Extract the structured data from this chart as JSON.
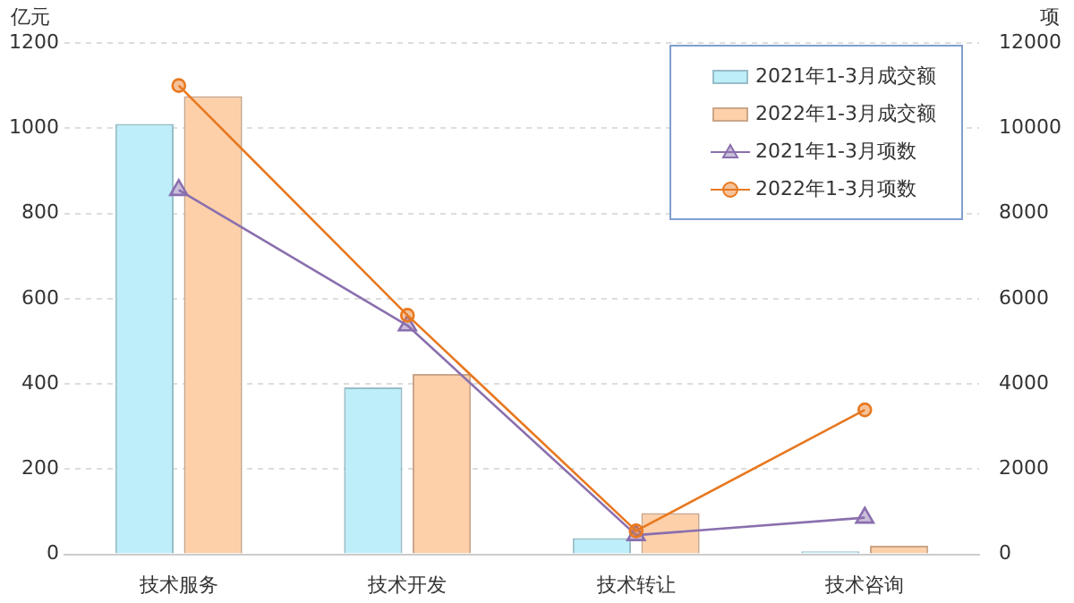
{
  "chart_data": {
    "type": "bar",
    "ylabel": "亿元",
    "y2label": "项",
    "categories": [
      "技术服务",
      "技术开发",
      "技术转让",
      "技术咨询"
    ],
    "series": [
      {
        "name": "2021年1-3月成交额",
        "color": "#bdeefa",
        "values": [
          1010,
          392,
          38,
          7
        ]
      },
      {
        "name": "2022年1-3月成交额",
        "color": "#fdd0aa",
        "values": [
          1075,
          423,
          97,
          20
        ]
      },
      {
        "name": "2021年1-3月项数",
        "type": "line",
        "axis": "y2",
        "marker": "triangle",
        "color": "#8a6fae",
        "values": [
          8550,
          5370,
          450,
          860
        ]
      },
      {
        "name": "2022年1-3月项数",
        "type": "line",
        "axis": "y2",
        "marker": "circle",
        "color": "#e8781f",
        "values": [
          11000,
          5610,
          550,
          3390
        ]
      }
    ],
    "ylim": [
      0,
      1200
    ],
    "yticks": [
      0,
      200,
      400,
      600,
      800,
      1000,
      1200
    ],
    "y2lim": [
      0,
      12000
    ],
    "y2ticks": [
      0,
      2000,
      4000,
      6000,
      8000,
      10000,
      12000
    ],
    "grid": "y",
    "legend": "top right"
  }
}
